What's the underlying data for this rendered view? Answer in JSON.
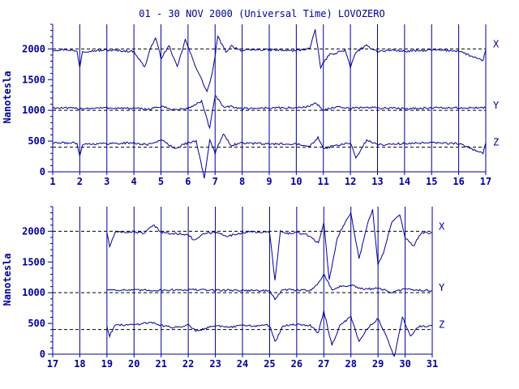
{
  "title": "01 - 30 NOV 2000 (Universal Time) LOVOZERO",
  "colors": {
    "ink": "#00009b",
    "background": "#ffffff"
  },
  "chart_data": [
    {
      "type": "line",
      "ylabel": "Nanotesla",
      "xlim": [
        1,
        17
      ],
      "ylim": [
        0,
        2400
      ],
      "x_ticks": [
        "1",
        "2",
        "3",
        "4",
        "5",
        "6",
        "7",
        "8",
        "9",
        "10",
        "11",
        "12",
        "13",
        "14",
        "15",
        "16",
        "17"
      ],
      "y_ticks": [
        0,
        500,
        1000,
        1500,
        2000
      ],
      "grid": "vertical day lines; dashed baselines per component",
      "series": [
        {
          "name": "X",
          "baseline": 2000,
          "x": [
            1,
            1.5,
            1.9,
            2.0,
            2.1,
            3,
            4,
            4.4,
            4.6,
            4.8,
            5.0,
            5.3,
            5.6,
            5.9,
            6.2,
            6.5,
            6.7,
            6.9,
            7.1,
            7.4,
            7.6,
            8,
            8.6,
            9.2,
            10,
            10.5,
            10.7,
            10.9,
            11.2,
            11.8,
            12.0,
            12.2,
            12.6,
            13,
            13.6,
            14,
            15,
            16,
            16.9,
            17
          ],
          "values": [
            1980,
            1990,
            1960,
            1700,
            1960,
            1980,
            1960,
            1700,
            2000,
            2180,
            1850,
            2050,
            1700,
            2150,
            1800,
            1500,
            1300,
            1600,
            2200,
            1950,
            2050,
            1970,
            1990,
            1980,
            1970,
            2010,
            2300,
            1700,
            1900,
            1980,
            1700,
            1950,
            2050,
            1960,
            1980,
            1960,
            1980,
            1970,
            1800,
            1980
          ]
        },
        {
          "name": "Y",
          "baseline": 1000,
          "x": [
            1,
            2,
            3,
            4,
            4.5,
            5,
            5.5,
            6,
            6.5,
            6.8,
            7,
            7.3,
            7.6,
            8,
            9,
            10,
            10.5,
            10.7,
            11,
            11.5,
            12,
            12.5,
            13,
            14,
            15,
            16,
            17
          ],
          "values": [
            1040,
            1030,
            1040,
            1030,
            1020,
            1060,
            1010,
            1030,
            1150,
            700,
            1250,
            1050,
            1060,
            1030,
            1040,
            1040,
            1070,
            1120,
            1010,
            1050,
            1030,
            1050,
            1040,
            1030,
            1040,
            1040,
            1040
          ]
        },
        {
          "name": "Z",
          "baseline": 400,
          "x": [
            1,
            1.9,
            2.0,
            2.1,
            3,
            4,
            4.5,
            5,
            5.5,
            5.9,
            6.3,
            6.6,
            6.8,
            7.0,
            7.3,
            7.6,
            8,
            9,
            10,
            10.5,
            10.8,
            11,
            11.5,
            12,
            12.2,
            12.6,
            13,
            14,
            15,
            16,
            16.9,
            17
          ],
          "values": [
            470,
            470,
            250,
            450,
            460,
            470,
            440,
            520,
            380,
            460,
            500,
            -100,
            520,
            300,
            620,
            430,
            470,
            450,
            460,
            420,
            560,
            380,
            430,
            470,
            220,
            520,
            440,
            460,
            470,
            460,
            300,
            470
          ]
        }
      ]
    },
    {
      "type": "line",
      "ylabel": "Nanotesla",
      "xlim": [
        17,
        31
      ],
      "ylim": [
        0,
        2400
      ],
      "x_ticks": [
        "17",
        "18",
        "19",
        "20",
        "21",
        "22",
        "23",
        "24",
        "25",
        "26",
        "27",
        "28",
        "29",
        "30",
        "31"
      ],
      "y_ticks": [
        0,
        500,
        1000,
        1500,
        2000
      ],
      "grid": "vertical day lines; dashed baselines per component",
      "series": [
        {
          "name": "X",
          "baseline": 2000,
          "x": [
            19,
            19.1,
            19.3,
            20,
            20.4,
            20.7,
            21,
            21.3,
            21.6,
            22,
            22.2,
            22.6,
            23,
            23.5,
            24,
            24.5,
            25,
            25.2,
            25.4,
            25.6,
            26,
            26.5,
            26.8,
            27.0,
            27.2,
            27.5,
            27.8,
            28.0,
            28.3,
            28.6,
            28.8,
            29.0,
            29.2,
            29.5,
            29.8,
            30.0,
            30.3,
            30.6,
            31
          ],
          "values": [
            1980,
            1750,
            1980,
            1990,
            1970,
            2100,
            1990,
            1960,
            1960,
            1950,
            1850,
            1960,
            1980,
            1920,
            1980,
            1990,
            1980,
            1200,
            2000,
            1960,
            1980,
            1920,
            1800,
            2150,
            1200,
            1900,
            2150,
            2300,
            1550,
            2100,
            2350,
            1450,
            1650,
            2150,
            2280,
            1900,
            1750,
            1980,
            1970
          ]
        },
        {
          "name": "Y",
          "baseline": 1000,
          "x": [
            19,
            20,
            21,
            22,
            23,
            24,
            25,
            25.2,
            25.5,
            26,
            26.5,
            26.8,
            27,
            27.3,
            27.6,
            28,
            28.5,
            29,
            29.5,
            30,
            30.5,
            31
          ],
          "values": [
            1050,
            1040,
            1040,
            1050,
            1040,
            1040,
            1030,
            900,
            1050,
            1040,
            1040,
            1150,
            1300,
            1050,
            1100,
            1120,
            1050,
            1080,
            1000,
            1060,
            1040,
            1040
          ]
        },
        {
          "name": "Z",
          "baseline": 400,
          "x": [
            19,
            19.1,
            19.3,
            20,
            20.6,
            21,
            21.5,
            22,
            22.3,
            23,
            23.5,
            24,
            24.5,
            25,
            25.2,
            25.5,
            26,
            26.5,
            26.8,
            27.0,
            27.3,
            27.6,
            28,
            28.3,
            28.6,
            29,
            29.3,
            29.6,
            29.9,
            30.2,
            30.5,
            31
          ],
          "values": [
            460,
            300,
            470,
            480,
            520,
            470,
            430,
            480,
            380,
            470,
            430,
            470,
            460,
            470,
            200,
            460,
            480,
            470,
            350,
            700,
            150,
            460,
            620,
            200,
            420,
            580,
            300,
            -50,
            600,
            300,
            450,
            470
          ]
        }
      ]
    }
  ]
}
